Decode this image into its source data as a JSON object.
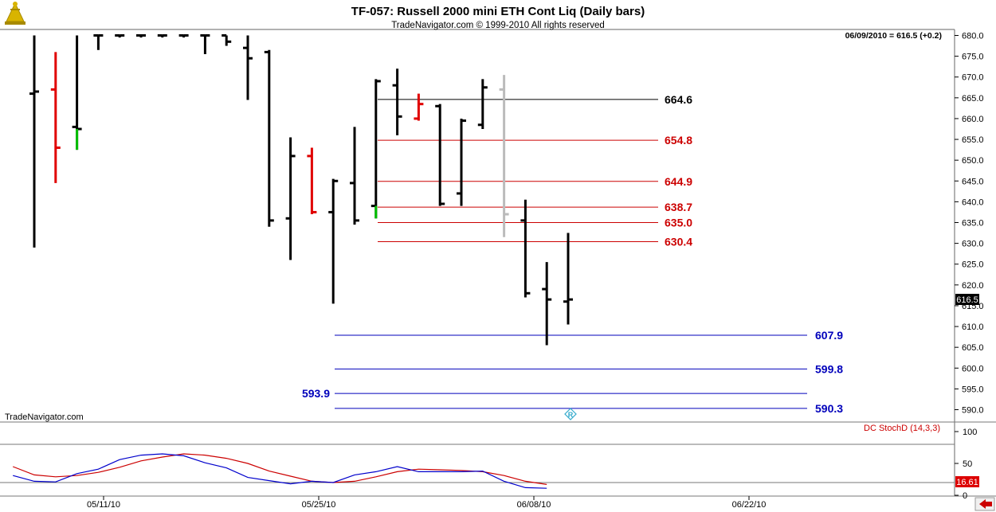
{
  "header": {
    "title": "TF-057:  Russell 2000 mini ETH Cont Liq  (Daily bars)",
    "subtitle": "TradeNavigator.com © 1999-2010 All rights reserved"
  },
  "last_bar_info": "06/09/2010 = 616.5 (+0.2)",
  "watermark": "TradeNavigator.com",
  "colors": {
    "bar_black": "#000000",
    "bar_red": "#e00000",
    "bar_green": "#00c000",
    "bar_grey": "#bbbbbb",
    "resistance": "#cc0000",
    "support": "#0000bb",
    "stoch_red": "#cc0000",
    "stoch_blue": "#0000cc",
    "nav_arrow": "#cc0000"
  },
  "chart_data": {
    "type": "bar",
    "y_axis": {
      "min": 590,
      "max": 680,
      "step": 5,
      "tick_labels": [
        "680.0",
        "675.0",
        "670.0",
        "665.0",
        "660.0",
        "655.0",
        "650.0",
        "645.0",
        "640.0",
        "635.0",
        "630.0",
        "625.0",
        "620.0",
        "615.0",
        "610.0",
        "605.0",
        "600.0",
        "595.0",
        "590.0"
      ]
    },
    "x_axis": {
      "tick_labels": [
        "05/11/10",
        "05/25/10",
        "06/08/10",
        "06/22/10"
      ]
    },
    "price_bars": [
      {
        "high": 680.0,
        "low": 629.0,
        "open": 666.0,
        "close": 666.5,
        "color": "black"
      },
      {
        "high": 676.0,
        "low": 644.5,
        "open": 667.0,
        "close": 653.0,
        "color": "red"
      },
      {
        "high": 680.0,
        "low": 652.5,
        "open": 658.0,
        "close": 657.5,
        "color": "black",
        "tail_color": "green"
      },
      {
        "high": 680.0,
        "low": 676.5,
        "open": 680.0,
        "close": 680.0,
        "color": "black"
      },
      {
        "high": 680.0,
        "low": 679.5,
        "open": 680.0,
        "close": 680.0,
        "color": "black"
      },
      {
        "high": 680.0,
        "low": 679.5,
        "open": 680.0,
        "close": 680.0,
        "color": "black"
      },
      {
        "high": 680.0,
        "low": 679.5,
        "open": 680.0,
        "close": 680.0,
        "color": "black"
      },
      {
        "high": 680.0,
        "low": 679.5,
        "open": 680.0,
        "close": 680.0,
        "color": "black"
      },
      {
        "high": 680.0,
        "low": 675.5,
        "open": 680.0,
        "close": 680.0,
        "color": "black"
      },
      {
        "high": 680.0,
        "low": 677.5,
        "open": 680.0,
        "close": 678.5,
        "color": "black"
      },
      {
        "high": 680.0,
        "low": 664.5,
        "open": 677.0,
        "close": 674.5,
        "color": "black"
      },
      {
        "high": 676.5,
        "low": 634.0,
        "open": 676.0,
        "close": 635.5,
        "color": "black"
      },
      {
        "high": 655.5,
        "low": 626.0,
        "open": 636.0,
        "close": 651.0,
        "color": "black"
      },
      {
        "high": 653.0,
        "low": 637.0,
        "open": 651.0,
        "close": 637.5,
        "color": "red"
      },
      {
        "high": 645.5,
        "low": 615.5,
        "open": 637.5,
        "close": 645.0,
        "color": "black"
      },
      {
        "high": 658.0,
        "low": 634.5,
        "open": 644.5,
        "close": 635.5,
        "color": "black"
      },
      {
        "high": 669.5,
        "low": 636.0,
        "open": 639.0,
        "close": 669.0,
        "color": "black",
        "tail_color": "green"
      },
      {
        "high": 672.0,
        "low": 656.0,
        "open": 668.0,
        "close": 660.5,
        "color": "black"
      },
      {
        "high": 666.0,
        "low": 659.5,
        "open": 660.0,
        "close": 663.5,
        "color": "red"
      },
      {
        "high": 663.5,
        "low": 639.0,
        "open": 663.0,
        "close": 639.5,
        "color": "black"
      },
      {
        "high": 660.0,
        "low": 639.0,
        "open": 642.0,
        "close": 659.5,
        "color": "black"
      },
      {
        "high": 669.5,
        "low": 657.5,
        "open": 658.5,
        "close": 667.5,
        "color": "black"
      },
      {
        "high": 670.5,
        "low": 631.5,
        "open": 667.0,
        "close": 637.0,
        "color": "grey"
      },
      {
        "high": 640.5,
        "low": 617.0,
        "open": 635.5,
        "close": 618.0,
        "color": "black"
      },
      {
        "high": 625.5,
        "low": 605.5,
        "open": 619.0,
        "close": 616.5,
        "color": "black"
      },
      {
        "high": 632.5,
        "low": 610.5,
        "open": 616.0,
        "close": 616.5,
        "color": "black"
      }
    ],
    "resistance_levels": [
      {
        "value": 664.6,
        "label": "664.6",
        "color": "black"
      },
      {
        "value": 654.8,
        "label": "654.8",
        "color": "red"
      },
      {
        "value": 644.9,
        "label": "644.9",
        "color": "red"
      },
      {
        "value": 638.7,
        "label": "638.7",
        "color": "red"
      },
      {
        "value": 635.0,
        "label": "635.0",
        "color": "red"
      },
      {
        "value": 630.4,
        "label": "630.4",
        "color": "red"
      }
    ],
    "support_levels": [
      {
        "value": 607.9,
        "label": "607.9",
        "label_side": "right"
      },
      {
        "value": 599.8,
        "label": "599.8",
        "label_side": "right"
      },
      {
        "value": 593.9,
        "label": "593.9",
        "label_side": "left"
      },
      {
        "value": 590.3,
        "label": "590.3",
        "label_side": "right"
      }
    ],
    "last_price": "616.5",
    "indicator": {
      "name": "DC StochD (14,3,3)",
      "y_axis": {
        "min": 0,
        "max": 110,
        "tick_labels": [
          "100",
          "50",
          "0"
        ]
      },
      "reference_lines": [
        80,
        20
      ],
      "last_value": "16.61",
      "series": [
        {
          "color": "red",
          "values": [
            45,
            32,
            29,
            31,
            36,
            44,
            54,
            60,
            65,
            63,
            58,
            50,
            38,
            30,
            22,
            20,
            22,
            29,
            37,
            41,
            40,
            39,
            37,
            31,
            22,
            17
          ]
        },
        {
          "color": "blue",
          "values": [
            31,
            22,
            21,
            34,
            41,
            56,
            63,
            65,
            62,
            51,
            43,
            28,
            23,
            18,
            22,
            20,
            32,
            37,
            45,
            37,
            37,
            37,
            38,
            22,
            12,
            11
          ]
        }
      ]
    }
  }
}
